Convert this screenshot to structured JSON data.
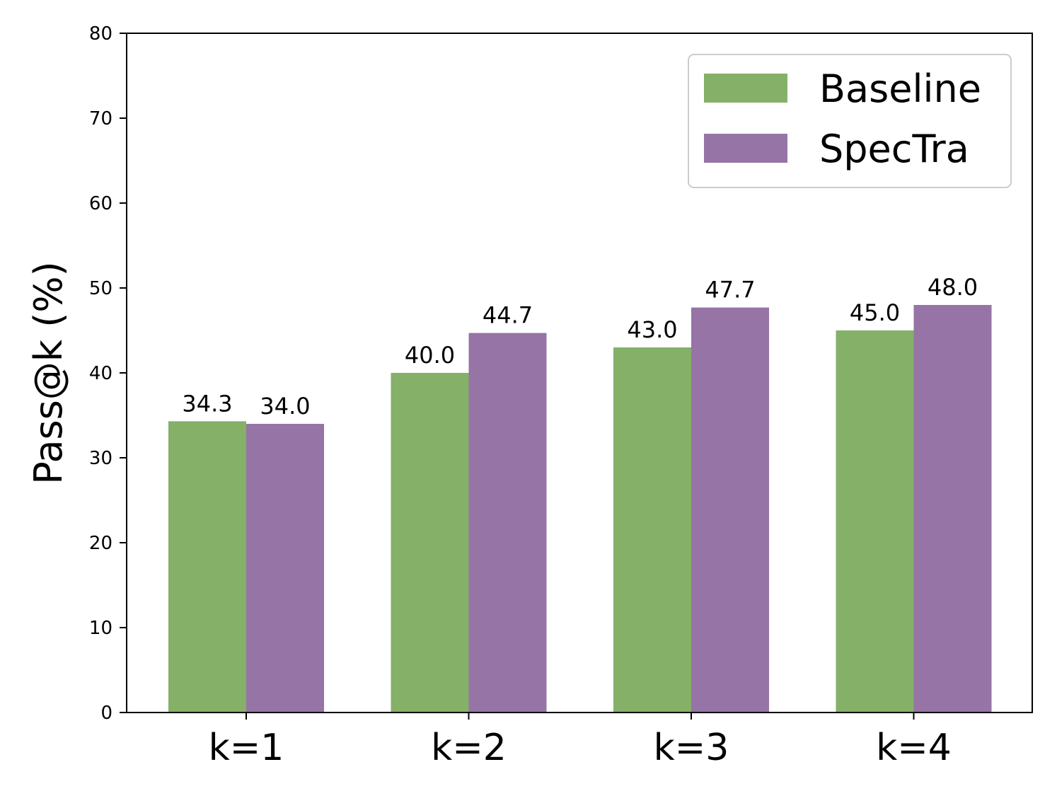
{
  "chart_data": {
    "type": "bar",
    "title": "",
    "xlabel": "",
    "ylabel": "Pass@k (%)",
    "categories": [
      "k=1",
      "k=2",
      "k=3",
      "k=4"
    ],
    "series": [
      {
        "name": "Baseline",
        "color": "#84b068",
        "values": [
          34.3,
          40.0,
          43.0,
          45.0
        ],
        "labels": [
          "34.3",
          "40.0",
          "43.0",
          "45.0"
        ]
      },
      {
        "name": "SpecTra",
        "color": "#9674a6",
        "values": [
          34.0,
          44.7,
          47.7,
          48.0
        ],
        "labels": [
          "34.0",
          "44.7",
          "47.7",
          "48.0"
        ]
      }
    ],
    "ylim": [
      0,
      80
    ],
    "yticks": [
      0,
      10,
      20,
      30,
      40,
      50,
      60,
      70,
      80
    ],
    "ytick_labels": [
      "0",
      "10",
      "20",
      "30",
      "40",
      "50",
      "60",
      "70",
      "80"
    ],
    "grid": false,
    "legend_position": "top-right"
  }
}
